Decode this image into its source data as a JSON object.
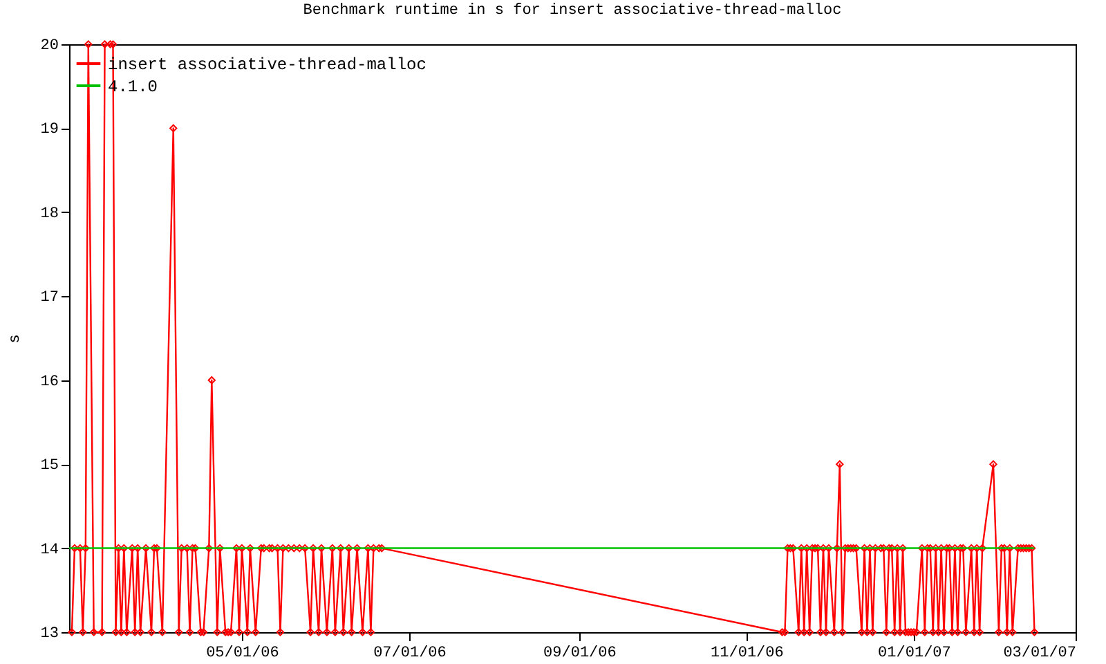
{
  "chart_data": {
    "type": "line",
    "title": "Benchmark runtime in s for insert associative-thread-malloc",
    "ylabel": "s",
    "xlim": [
      "2006-02-27",
      "2007-03-01"
    ],
    "ylim": [
      13,
      20
    ],
    "yticks": [
      13,
      14,
      15,
      16,
      17,
      18,
      19,
      20
    ],
    "xticks": [
      {
        "value": "2006-05-01",
        "label": "05/01/06"
      },
      {
        "value": "2006-07-01",
        "label": "07/01/06"
      },
      {
        "value": "2006-09-01",
        "label": "09/01/06"
      },
      {
        "value": "2006-11-01",
        "label": "11/01/06"
      },
      {
        "value": "2007-01-01",
        "label": "01/01/07"
      },
      {
        "value": "2007-03-01",
        "label": "03/01/07"
      }
    ],
    "grid": false,
    "legend": "top left",
    "marker": "diamond",
    "line_style": "solid",
    "series": [
      {
        "name": "insert associative-thread-malloc",
        "color": "#ff0000",
        "x": [
          "2006-02-28",
          "2006-03-01",
          "2006-03-03",
          "2006-03-04",
          "2006-03-05",
          "2006-03-06",
          "2006-03-08",
          "2006-03-11",
          "2006-03-12",
          "2006-03-14",
          "2006-03-15",
          "2006-03-16",
          "2006-03-17",
          "2006-03-18",
          "2006-03-19",
          "2006-03-20",
          "2006-03-22",
          "2006-03-23",
          "2006-03-24",
          "2006-03-25",
          "2006-03-27",
          "2006-03-29",
          "2006-03-30",
          "2006-03-31",
          "2006-04-02",
          "2006-04-06",
          "2006-04-08",
          "2006-04-09",
          "2006-04-11",
          "2006-04-12",
          "2006-04-13",
          "2006-04-14",
          "2006-04-16",
          "2006-04-17",
          "2006-04-19",
          "2006-04-20",
          "2006-04-22",
          "2006-04-23",
          "2006-04-25",
          "2006-04-26",
          "2006-04-27",
          "2006-04-29",
          "2006-04-30",
          "2006-05-01",
          "2006-05-03",
          "2006-05-04",
          "2006-05-06",
          "2006-05-08",
          "2006-05-09",
          "2006-05-11",
          "2006-05-12",
          "2006-05-14",
          "2006-05-15",
          "2006-05-16",
          "2006-05-18",
          "2006-05-20",
          "2006-05-22",
          "2006-05-24",
          "2006-05-26",
          "2006-05-27",
          "2006-05-29",
          "2006-05-30",
          "2006-06-01",
          "2006-06-03",
          "2006-06-04",
          "2006-06-06",
          "2006-06-07",
          "2006-06-09",
          "2006-06-10",
          "2006-06-12",
          "2006-06-14",
          "2006-06-16",
          "2006-06-17",
          "2006-06-18",
          "2006-06-20",
          "2006-06-21",
          "2006-11-14",
          "2006-11-15",
          "2006-11-16",
          "2006-11-17",
          "2006-11-18",
          "2006-11-20",
          "2006-11-21",
          "2006-11-22",
          "2006-11-23",
          "2006-11-24",
          "2006-11-25",
          "2006-11-26",
          "2006-11-27",
          "2006-11-28",
          "2006-11-29",
          "2006-11-30",
          "2006-12-01",
          "2006-12-03",
          "2006-12-04",
          "2006-12-05",
          "2006-12-06",
          "2006-12-07",
          "2006-12-08",
          "2006-12-09",
          "2006-12-10",
          "2006-12-11",
          "2006-12-13",
          "2006-12-14",
          "2006-12-15",
          "2006-12-16",
          "2006-12-17",
          "2006-12-18",
          "2006-12-20",
          "2006-12-21",
          "2006-12-22",
          "2006-12-23",
          "2006-12-24",
          "2006-12-25",
          "2006-12-26",
          "2006-12-27",
          "2006-12-28",
          "2006-12-29",
          "2006-12-30",
          "2006-12-31",
          "2007-01-01",
          "2007-01-02",
          "2007-01-04",
          "2007-01-05",
          "2007-01-06",
          "2007-01-07",
          "2007-01-08",
          "2007-01-09",
          "2007-01-10",
          "2007-01-11",
          "2007-01-12",
          "2007-01-13",
          "2007-01-14",
          "2007-01-15",
          "2007-01-16",
          "2007-01-17",
          "2007-01-18",
          "2007-01-19",
          "2007-01-20",
          "2007-01-22",
          "2007-01-23",
          "2007-01-24",
          "2007-01-25",
          "2007-01-26",
          "2007-01-30",
          "2007-02-01",
          "2007-02-02",
          "2007-02-03",
          "2007-02-04",
          "2007-02-05",
          "2007-02-06",
          "2007-02-08",
          "2007-02-09",
          "2007-02-10",
          "2007-02-11",
          "2007-02-12",
          "2007-02-13",
          "2007-02-14"
        ],
        "values": [
          13,
          14,
          14,
          13,
          14,
          20,
          13,
          13,
          20,
          20,
          20,
          13,
          14,
          13,
          14,
          13,
          14,
          13,
          14,
          13,
          14,
          13,
          14,
          14,
          13,
          19,
          13,
          14,
          14,
          13,
          14,
          14,
          13,
          13,
          14,
          16,
          13,
          14,
          13,
          13,
          13,
          14,
          13,
          14,
          13,
          14,
          13,
          14,
          14,
          14,
          14,
          14,
          13,
          14,
          14,
          14,
          14,
          14,
          13,
          14,
          13,
          14,
          13,
          14,
          13,
          14,
          13,
          14,
          13,
          14,
          13,
          14,
          13,
          14,
          14,
          14,
          13,
          13,
          14,
          14,
          14,
          13,
          14,
          13,
          14,
          13,
          14,
          14,
          14,
          13,
          14,
          13,
          14,
          13,
          14,
          15,
          13,
          14,
          14,
          14,
          14,
          14,
          13,
          14,
          13,
          14,
          13,
          14,
          14,
          14,
          13,
          14,
          14,
          13,
          14,
          13,
          14,
          13,
          13,
          13,
          13,
          13,
          14,
          13,
          14,
          14,
          13,
          14,
          13,
          14,
          13,
          14,
          14,
          13,
          14,
          13,
          14,
          14,
          13,
          14,
          13,
          14,
          13,
          14,
          15,
          13,
          14,
          14,
          13,
          14,
          13,
          14,
          14,
          14,
          14,
          14,
          14,
          13
        ]
      },
      {
        "name": "4.1.0",
        "color": "#00c000",
        "marker": "none",
        "x": [
          "2006-02-27",
          "2007-02-14"
        ],
        "values": [
          14,
          14
        ]
      }
    ]
  }
}
